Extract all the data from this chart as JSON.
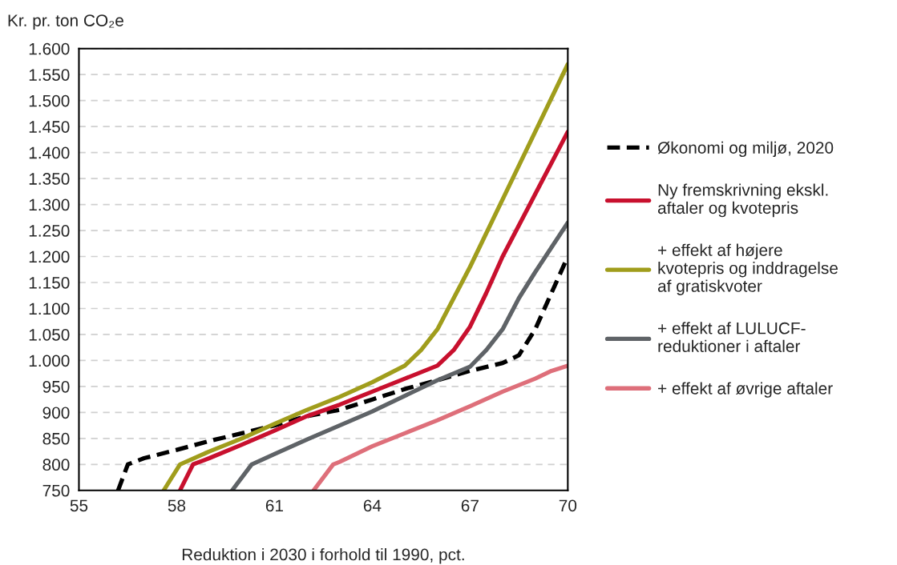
{
  "chart_data": {
    "type": "line",
    "ylabel": "Kr. pr. ton CO₂e",
    "xlabel": "Reduktion i 2030 i forhold til 1990, pct.",
    "xlim": [
      55,
      70
    ],
    "xticks": [
      55,
      58,
      61,
      64,
      67,
      70
    ],
    "ylim": [
      750,
      1600
    ],
    "yticks": [
      {
        "value": 750,
        "label": "750"
      },
      {
        "value": 800,
        "label": "800"
      },
      {
        "value": 850,
        "label": "850"
      },
      {
        "value": 900,
        "label": "900"
      },
      {
        "value": 950,
        "label": "950"
      },
      {
        "value": 1000,
        "label": "1.000"
      },
      {
        "value": 1050,
        "label": "1.050"
      },
      {
        "value": 1100,
        "label": "1.100"
      },
      {
        "value": 1150,
        "label": "1.150"
      },
      {
        "value": 1200,
        "label": "1.200"
      },
      {
        "value": 1250,
        "label": "1.250"
      },
      {
        "value": 1300,
        "label": "1.300"
      },
      {
        "value": 1350,
        "label": "1.350"
      },
      {
        "value": 1400,
        "label": "1.400"
      },
      {
        "value": 1450,
        "label": "1.450"
      },
      {
        "value": 1500,
        "label": "1.500"
      },
      {
        "value": 1550,
        "label": "1.550"
      },
      {
        "value": 1600,
        "label": "1.600"
      }
    ],
    "grid": "y",
    "legend": "right",
    "marker": "none",
    "series": [
      {
        "name": "Økonomi og miljø, 2020",
        "color": "#000000",
        "line_style": "dashed",
        "x": [
          56.2,
          56.5,
          57,
          58,
          59,
          60,
          61,
          62,
          63,
          64,
          65,
          66,
          67,
          68,
          68.5,
          69,
          69.5,
          70
        ],
        "values": [
          750,
          800,
          812,
          828,
          845,
          860,
          875,
          893,
          905,
          925,
          945,
          962,
          980,
          995,
          1010,
          1060,
          1130,
          1200
        ]
      },
      {
        "name": "Ny fremskrivning ekskl.\naftaler og kvotepris",
        "color": "#c8102e",
        "line_style": "solid",
        "x": [
          58.1,
          58.5,
          59,
          60,
          61,
          62,
          63,
          64,
          65,
          66,
          66.5,
          67,
          67.5,
          68,
          69,
          70
        ],
        "values": [
          750,
          800,
          812,
          838,
          865,
          893,
          915,
          940,
          965,
          990,
          1020,
          1065,
          1130,
          1200,
          1320,
          1440
        ]
      },
      {
        "name": "+ effekt af højere\nkvotepris og inddragelse\naf gratiskvoter",
        "color": "#a09d1c",
        "line_style": "solid",
        "x": [
          57.6,
          58.1,
          59,
          60,
          61,
          62,
          63,
          64,
          65,
          65.5,
          66,
          66.5,
          67,
          68,
          69,
          70
        ],
        "values": [
          750,
          800,
          825,
          850,
          878,
          905,
          930,
          958,
          990,
          1020,
          1060,
          1120,
          1180,
          1310,
          1440,
          1570
        ]
      },
      {
        "name": "+ effekt af LULUCF-\nreduktioner i aftaler",
        "color": "#5f6367",
        "line_style": "solid",
        "x": [
          59.7,
          60.3,
          61,
          62,
          63,
          64,
          65,
          66,
          67,
          67.5,
          68,
          68.5,
          69,
          70
        ],
        "values": [
          750,
          800,
          820,
          848,
          875,
          902,
          932,
          962,
          988,
          1020,
          1060,
          1120,
          1170,
          1265
        ]
      },
      {
        "name": "+ effekt af øvrige aftaler",
        "color": "#de6f7a",
        "line_style": "solid",
        "x": [
          62.2,
          62.8,
          63,
          64,
          65,
          66,
          67,
          68,
          69,
          69.5,
          70
        ],
        "values": [
          750,
          800,
          805,
          835,
          860,
          885,
          912,
          940,
          965,
          980,
          990
        ]
      }
    ]
  }
}
